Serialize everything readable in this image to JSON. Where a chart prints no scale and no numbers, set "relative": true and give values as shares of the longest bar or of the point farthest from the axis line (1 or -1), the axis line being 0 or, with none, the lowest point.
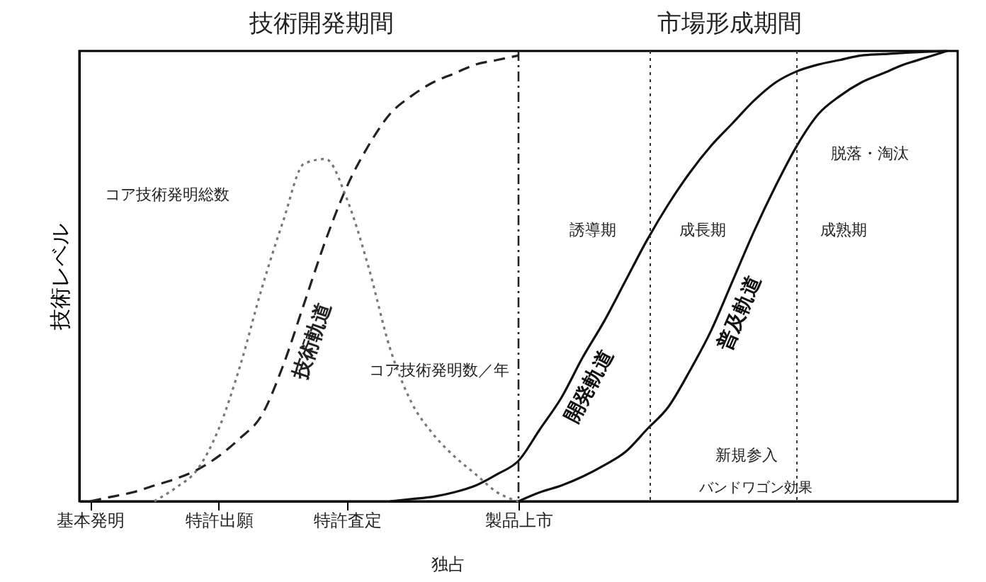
{
  "chart_data": {
    "type": "line",
    "relative": true,
    "ylabel": "技術レベル",
    "categories": [
      "基本発明",
      null,
      null,
      null,
      null,
      null,
      "特許出願",
      null,
      null,
      null,
      null,
      null,
      "特許査定",
      null,
      null,
      null,
      null,
      null,
      null,
      null,
      "製品上市",
      null,
      null,
      null,
      null,
      null,
      null,
      null,
      null,
      null,
      null,
      null,
      null,
      null,
      null,
      null,
      null,
      null,
      null,
      null,
      null
    ],
    "series": [
      {
        "name": "技術軌道",
        "color": "#222222",
        "line_style": "dashed",
        "values": [
          0,
          0.01,
          0.02,
          0.035,
          0.05,
          0.07,
          0.1,
          0.14,
          0.19,
          0.3,
          0.44,
          0.58,
          0.7,
          0.79,
          0.86,
          0.9,
          0.93,
          0.95,
          0.97,
          0.98,
          0.99,
          null,
          null,
          null,
          null,
          null,
          null,
          null,
          null,
          null,
          null,
          null,
          null,
          null,
          null,
          null,
          null,
          null,
          null,
          null,
          null
        ]
      },
      {
        "color": "#777777",
        "line_style": "dotted",
        "values": [
          null,
          null,
          null,
          0,
          0.03,
          0.07,
          0.16,
          0.3,
          0.47,
          0.62,
          0.75,
          0.76,
          0.67,
          0.52,
          0.34,
          0.22,
          0.15,
          0.1,
          0.06,
          0.02,
          0,
          null,
          null,
          null,
          null,
          null,
          null,
          null,
          null,
          null,
          null,
          null,
          null,
          null,
          null,
          null,
          null,
          null,
          null,
          null,
          null
        ]
      },
      {
        "name": "開発軌道",
        "color": "#111111",
        "line_style": "solid",
        "values": [
          null,
          null,
          null,
          null,
          null,
          null,
          null,
          null,
          null,
          null,
          null,
          null,
          null,
          null,
          0,
          0.005,
          0.01,
          0.02,
          0.035,
          0.06,
          0.09,
          0.16,
          0.23,
          0.32,
          0.4,
          0.49,
          0.58,
          0.66,
          0.73,
          0.79,
          0.84,
          0.89,
          0.93,
          0.955,
          0.97,
          0.98,
          0.99,
          0.993,
          0.996,
          0.998,
          1
        ]
      },
      {
        "name": "普及軌道",
        "color": "#111111",
        "line_style": "solid",
        "values": [
          null,
          null,
          null,
          null,
          null,
          null,
          null,
          null,
          null,
          null,
          null,
          null,
          null,
          null,
          null,
          null,
          null,
          null,
          null,
          null,
          0,
          0.02,
          0.035,
          0.055,
          0.08,
          0.11,
          0.16,
          0.21,
          0.29,
          0.38,
          0.49,
          0.6,
          0.7,
          0.79,
          0.86,
          0.9,
          0.93,
          0.95,
          0.97,
          0.985,
          1
        ]
      }
    ],
    "ref_lines": [
      {
        "axis": "x",
        "value": "製品上市",
        "line_style": "dashed"
      }
    ],
    "annotations": [
      "技術開発期間",
      "市場形成期間",
      "コア技術発明総数",
      "コア技術発明数／年",
      "誘導期",
      "成長期",
      "成熟期",
      "脱落・淘汰",
      "新規参入",
      "バンドワゴン効果",
      "独占"
    ]
  }
}
